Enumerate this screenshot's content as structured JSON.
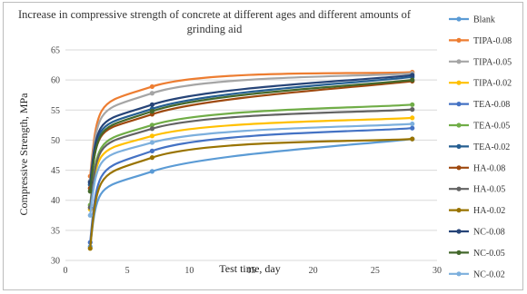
{
  "chart_data": {
    "type": "line",
    "title": "Increase in compressive strength of concrete at different ages and different amounts of grinding aid",
    "xlabel": "Test time, day",
    "ylabel": "Compressive Strength, MPa",
    "xlim": [
      0,
      30
    ],
    "ylim": [
      30,
      65
    ],
    "xticks": [
      "0",
      "5",
      "10",
      "15",
      "20",
      "25",
      "30"
    ],
    "yticks": [
      "30",
      "35",
      "40",
      "45",
      "50",
      "55",
      "60",
      "65"
    ],
    "grid": "horizontal",
    "legend": "right",
    "x": [
      2,
      7,
      28
    ],
    "series": [
      {
        "name": "Blank",
        "color": "#5B9BD5",
        "values": [
          32.3,
          44.8,
          50.2
        ]
      },
      {
        "name": "TIPA-0.08",
        "color": "#ED7D31",
        "values": [
          44.0,
          58.9,
          61.3
        ]
      },
      {
        "name": "TIPA-0.05",
        "color": "#A5A5A5",
        "values": [
          43.2,
          57.8,
          61.1
        ]
      },
      {
        "name": "TIPA-0.02",
        "color": "#FFC000",
        "values": [
          38.5,
          50.7,
          53.7
        ]
      },
      {
        "name": "TEA-0.08",
        "color": "#4472C4",
        "values": [
          33.0,
          48.2,
          52.0
        ]
      },
      {
        "name": "TEA-0.05",
        "color": "#70AD47",
        "values": [
          39.2,
          52.5,
          55.9
        ]
      },
      {
        "name": "TEA-0.02",
        "color": "#255E91",
        "values": [
          42.6,
          55.2,
          60.5
        ]
      },
      {
        "name": "HA-0.08",
        "color": "#9E480E",
        "values": [
          42.0,
          54.3,
          59.8
        ]
      },
      {
        "name": "HA-0.05",
        "color": "#636363",
        "values": [
          38.8,
          51.9,
          55.1
        ]
      },
      {
        "name": "HA-0.02",
        "color": "#997300",
        "values": [
          32.0,
          47.1,
          50.2
        ]
      },
      {
        "name": "NC-0.08",
        "color": "#264478",
        "values": [
          43.0,
          55.9,
          60.8
        ]
      },
      {
        "name": "NC-0.05",
        "color": "#43682B",
        "values": [
          41.5,
          54.8,
          60.0
        ]
      },
      {
        "name": "NC-0.02",
        "color": "#7CAFDD",
        "values": [
          37.5,
          49.6,
          52.7
        ]
      }
    ]
  }
}
